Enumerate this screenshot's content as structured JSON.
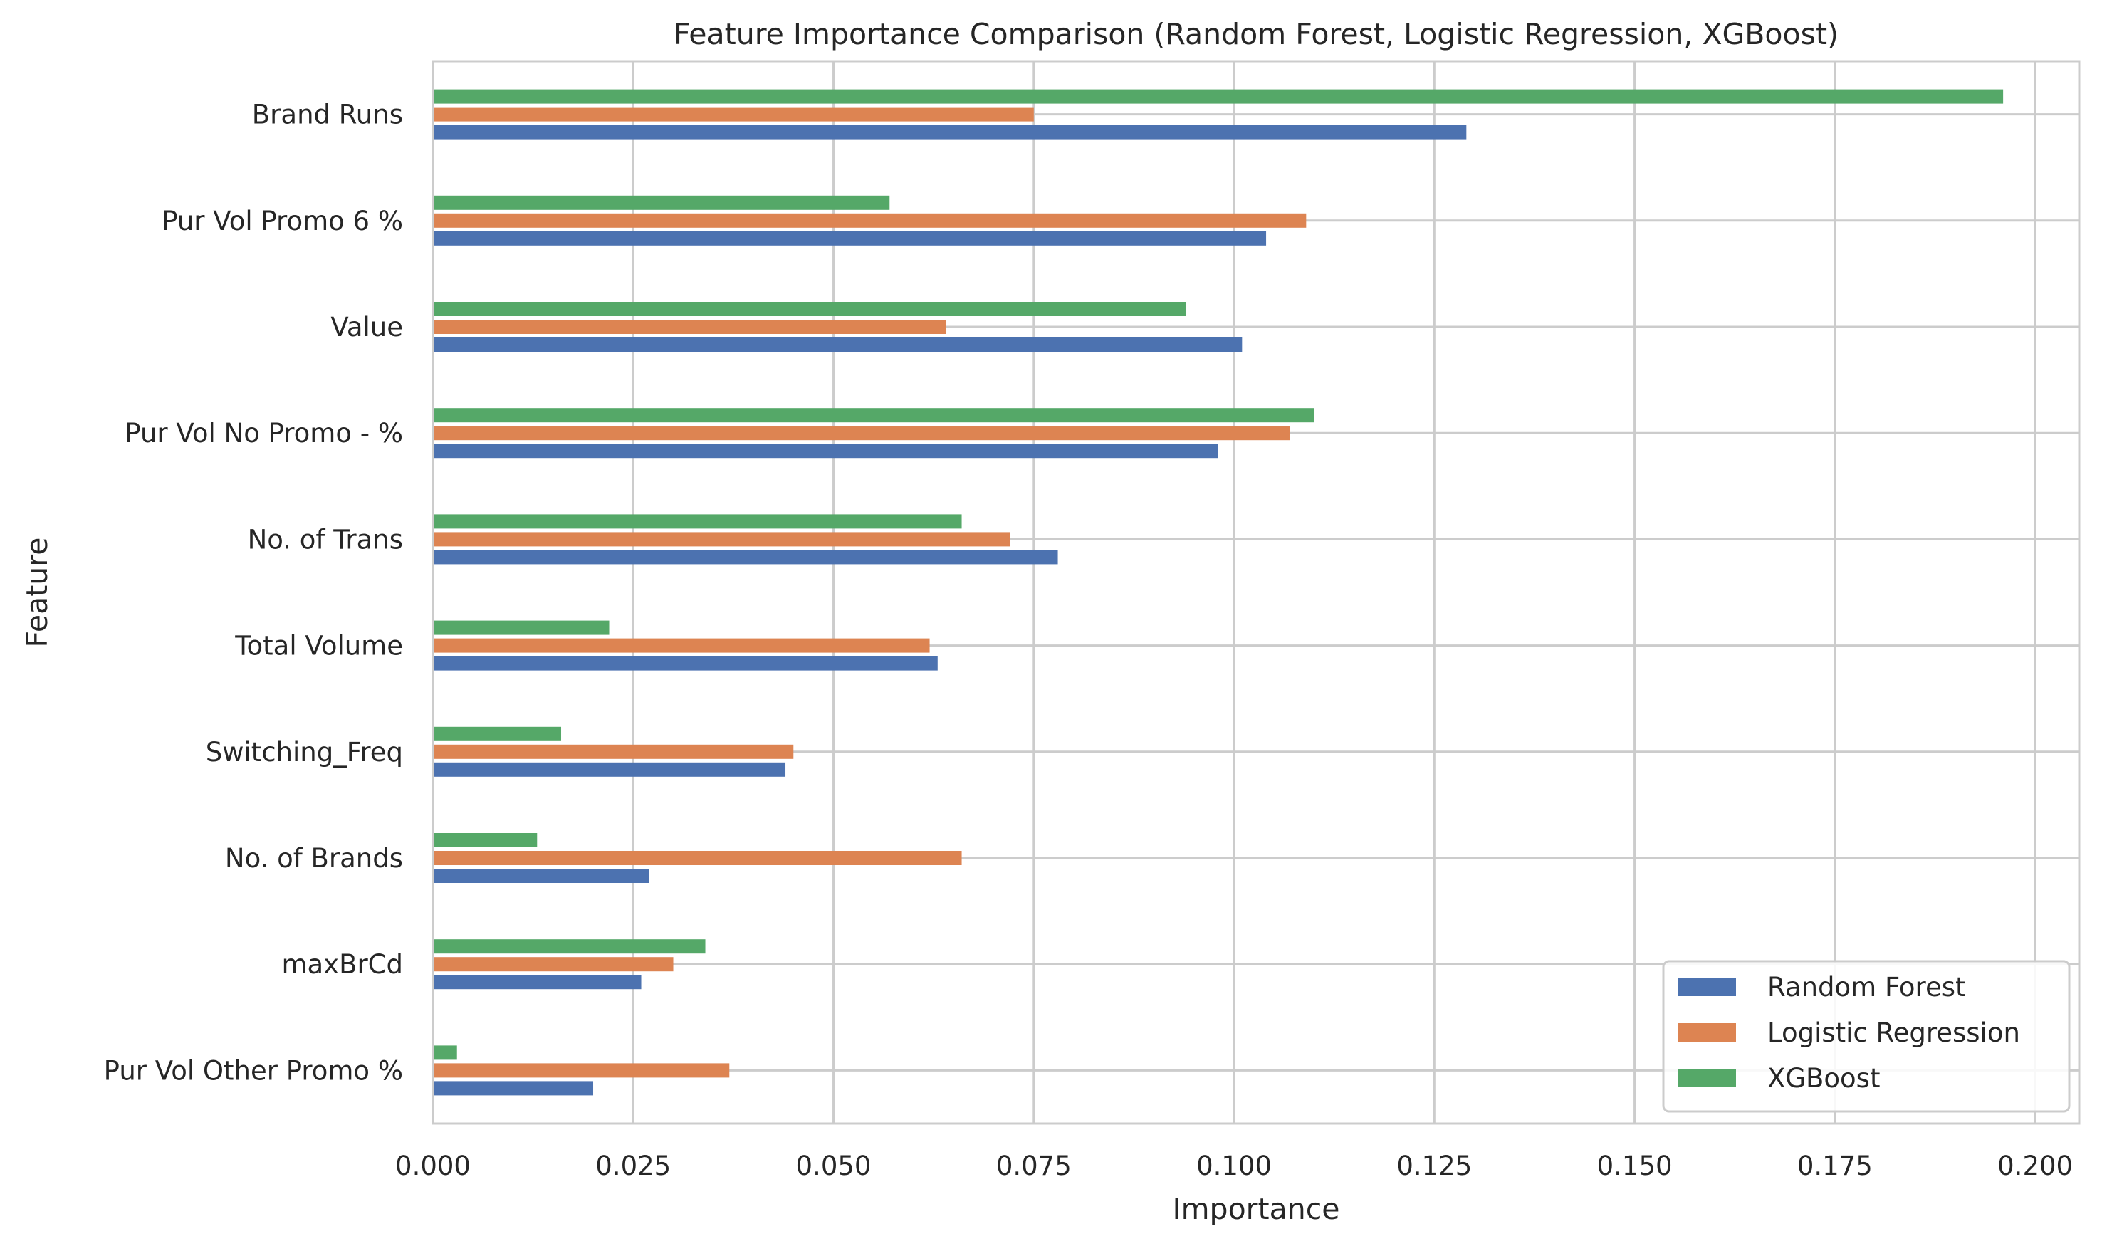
{
  "chart_data": {
    "type": "bar",
    "orientation": "horizontal",
    "title": "Feature Importance Comparison (Random Forest, Logistic Regression, XGBoost)",
    "xlabel": "Importance",
    "ylabel": "Feature",
    "xlim": [
      0,
      0.2055
    ],
    "xticks": [
      "0.000",
      "0.025",
      "0.050",
      "0.075",
      "0.100",
      "0.125",
      "0.150",
      "0.175",
      "0.200"
    ],
    "xtick_values": [
      0,
      0.025,
      0.05,
      0.075,
      0.1,
      0.125,
      0.15,
      0.175,
      0.2
    ],
    "grid": true,
    "legend_position": "bottom-right",
    "categories": [
      "Brand Runs",
      "Pur Vol Promo 6 %",
      "Value",
      "Pur Vol No Promo - %",
      "No. of  Trans",
      "Total Volume",
      "Switching_Freq",
      "No. of Brands",
      "maxBrCd",
      "Pur Vol Other Promo %"
    ],
    "series": [
      {
        "name": "Random Forest",
        "color": "#4c72b0",
        "values": [
          0.129,
          0.104,
          0.101,
          0.098,
          0.078,
          0.063,
          0.044,
          0.027,
          0.026,
          0.02
        ]
      },
      {
        "name": "Logistic Regression",
        "color": "#dd8452",
        "values": [
          0.075,
          0.109,
          0.064,
          0.107,
          0.072,
          0.062,
          0.045,
          0.066,
          0.03,
          0.037
        ]
      },
      {
        "name": "XGBoost",
        "color": "#55a868",
        "values": [
          0.196,
          0.057,
          0.094,
          0.11,
          0.066,
          0.022,
          0.016,
          0.013,
          0.034,
          0.003
        ]
      }
    ]
  }
}
